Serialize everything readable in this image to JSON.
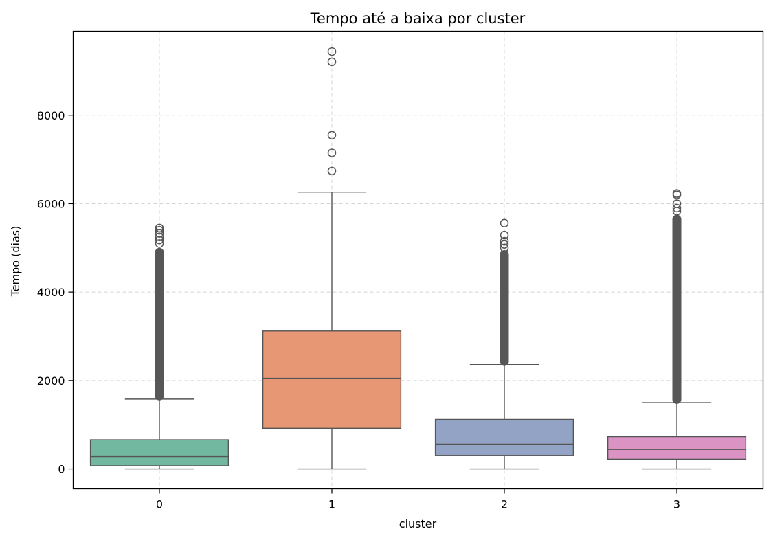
{
  "chart_data": {
    "type": "box",
    "title": "Tempo até a baixa por cluster",
    "xlabel": "cluster",
    "ylabel": "Tempo (dias)",
    "categories": [
      "0",
      "1",
      "2",
      "3"
    ],
    "yticks": [
      0,
      2000,
      4000,
      6000,
      8000
    ],
    "ylim": [
      -450,
      9900
    ],
    "grid": true,
    "edge_color": "#555555",
    "boxes": [
      {
        "category": "0",
        "color": "#72b8a0",
        "q1": 70,
        "median": 280,
        "q3": 660,
        "whisker_low": 0,
        "whisker_high": 1580,
        "outlier_range": [
          1550,
          5000
        ],
        "outliers": [
          5100,
          5180,
          5250,
          5330,
          5400,
          5450
        ]
      },
      {
        "category": "1",
        "color": "#e89774",
        "q1": 920,
        "median": 2050,
        "q3": 3120,
        "whisker_low": 0,
        "whisker_high": 6260,
        "outlier_range": null,
        "outliers": [
          6740,
          7150,
          7550,
          9210,
          9440
        ]
      },
      {
        "category": "2",
        "color": "#93a3c5",
        "q1": 300,
        "median": 560,
        "q3": 1120,
        "whisker_low": 0,
        "whisker_high": 2360,
        "outlier_range": [
          2330,
          4950
        ],
        "outliers": [
          5000,
          5080,
          5150,
          5290,
          5560
        ]
      },
      {
        "category": "3",
        "color": "#db93c4",
        "q1": 220,
        "median": 440,
        "q3": 730,
        "whisker_low": 0,
        "whisker_high": 1500,
        "outlier_range": [
          1470,
          5750
        ],
        "outliers": [
          5830,
          5900,
          6000,
          6200,
          6230
        ]
      }
    ]
  }
}
